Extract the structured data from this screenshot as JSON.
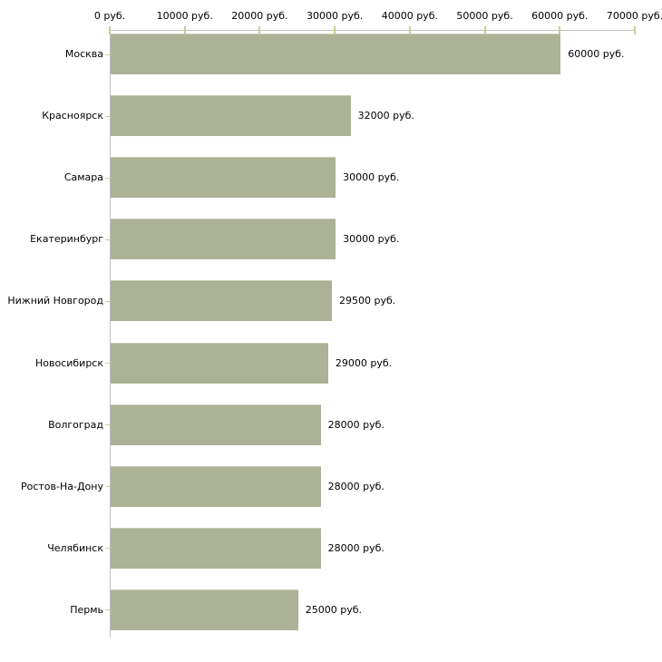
{
  "chart_data": {
    "type": "bar",
    "orientation": "horizontal",
    "title": "",
    "xlabel": "",
    "ylabel": "",
    "categories": [
      "Москва",
      "Красноярск",
      "Самара",
      "Екатеринбург",
      "Нижний Новгород",
      "Новосибирск",
      "Волгоград",
      "Ростов-На-Дону",
      "Челябинск",
      "Пермь"
    ],
    "values": [
      60000,
      32000,
      30000,
      30000,
      29500,
      29000,
      28000,
      28000,
      28000,
      25000
    ],
    "value_labels": [
      "60000 руб.",
      "32000 руб.",
      "30000 руб.",
      "30000 руб.",
      "29500 руб.",
      "29000 руб.",
      "28000 руб.",
      "28000 руб.",
      "28000 руб.",
      "25000 руб."
    ],
    "x_tick_labels": [
      "0 руб.",
      "10000 руб.",
      "20000 руб.",
      "30000 руб.",
      "40000 руб.",
      "50000 руб.",
      "60000 руб.",
      "70000 руб."
    ],
    "x_tick_values": [
      0,
      10000,
      20000,
      30000,
      40000,
      50000,
      60000,
      70000
    ],
    "xlim": [
      0,
      70000
    ],
    "unit": "руб.",
    "grid": false,
    "legend": "none",
    "axis_position": "top",
    "colors": {
      "bar": "#acb296",
      "bar_edge": "#c6cbb3",
      "axis_line": "#c0c0c0",
      "tick": "#cccc99",
      "text": "#000000",
      "background": "#ffffff"
    }
  }
}
